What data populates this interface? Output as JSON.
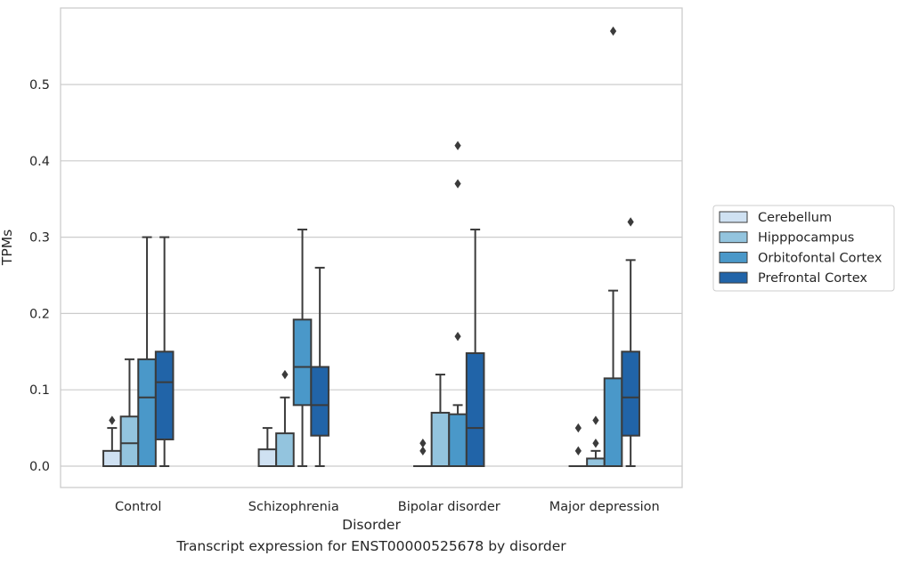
{
  "chart_data": {
    "type": "box",
    "caption": "Transcript expression for ENST00000525678 by disorder",
    "xlabel": "Disorder",
    "ylabel": "TPMs",
    "ylim": [
      -0.028,
      0.603
    ],
    "yticks": [
      0.0,
      0.1,
      0.2,
      0.3,
      0.4,
      0.5
    ],
    "ytick_labels": [
      "0.0",
      "0.1",
      "0.2",
      "0.3",
      "0.4",
      "0.5"
    ],
    "grid": "horizontal",
    "legend_position": "right",
    "categories": [
      "Control",
      "Schizophrenia",
      "Bipolar disorder",
      "Major depression"
    ],
    "series": [
      {
        "name": "Cerebellum",
        "color": "#cfe1f2",
        "boxes": [
          {
            "whislo": 0.0,
            "q1": 0.0,
            "med": 0.0,
            "q3": 0.02,
            "whishi": 0.05,
            "fliers": [
              0.06
            ]
          },
          {
            "whislo": 0.0,
            "q1": 0.0,
            "med": 0.0,
            "q3": 0.022,
            "whishi": 0.05,
            "fliers": []
          },
          {
            "whislo": 0.0,
            "q1": 0.0,
            "med": 0.0,
            "q3": 0.0,
            "whishi": 0.0,
            "fliers": [
              0.02,
              0.03
            ]
          },
          {
            "whislo": 0.0,
            "q1": 0.0,
            "med": 0.0,
            "q3": 0.0,
            "whishi": 0.0,
            "fliers": [
              0.02,
              0.05
            ]
          }
        ]
      },
      {
        "name": "Hipppocampus",
        "color": "#93c4de",
        "boxes": [
          {
            "whislo": 0.0,
            "q1": 0.0,
            "med": 0.03,
            "q3": 0.065,
            "whishi": 0.14,
            "fliers": []
          },
          {
            "whislo": 0.0,
            "q1": 0.0,
            "med": 0.0,
            "q3": 0.043,
            "whishi": 0.09,
            "fliers": [
              0.12
            ]
          },
          {
            "whislo": 0.0,
            "q1": 0.0,
            "med": 0.0,
            "q3": 0.07,
            "whishi": 0.12,
            "fliers": []
          },
          {
            "whislo": 0.0,
            "q1": 0.0,
            "med": 0.0,
            "q3": 0.01,
            "whishi": 0.02,
            "fliers": [
              0.03,
              0.06
            ]
          }
        ]
      },
      {
        "name": "Orbitofontal Cortex",
        "color": "#4a98c9",
        "boxes": [
          {
            "whislo": 0.0,
            "q1": 0.0,
            "med": 0.09,
            "q3": 0.14,
            "whishi": 0.3,
            "fliers": []
          },
          {
            "whislo": 0.0,
            "q1": 0.08,
            "med": 0.13,
            "q3": 0.192,
            "whishi": 0.31,
            "fliers": []
          },
          {
            "whislo": 0.0,
            "q1": 0.0,
            "med": 0.0,
            "q3": 0.068,
            "whishi": 0.08,
            "fliers": [
              0.17,
              0.37,
              0.42
            ]
          },
          {
            "whislo": 0.0,
            "q1": 0.0,
            "med": 0.0,
            "q3": 0.115,
            "whishi": 0.23,
            "fliers": [
              0.57
            ]
          }
        ]
      },
      {
        "name": "Prefrontal Cortex",
        "color": "#2164a8",
        "boxes": [
          {
            "whislo": 0.0,
            "q1": 0.035,
            "med": 0.11,
            "q3": 0.15,
            "whishi": 0.3,
            "fliers": []
          },
          {
            "whislo": 0.0,
            "q1": 0.04,
            "med": 0.08,
            "q3": 0.13,
            "whishi": 0.26,
            "fliers": []
          },
          {
            "whislo": 0.0,
            "q1": 0.0,
            "med": 0.05,
            "q3": 0.148,
            "whishi": 0.31,
            "fliers": []
          },
          {
            "whislo": 0.0,
            "q1": 0.04,
            "med": 0.09,
            "q3": 0.15,
            "whishi": 0.27,
            "fliers": [
              0.32
            ]
          }
        ]
      }
    ]
  }
}
